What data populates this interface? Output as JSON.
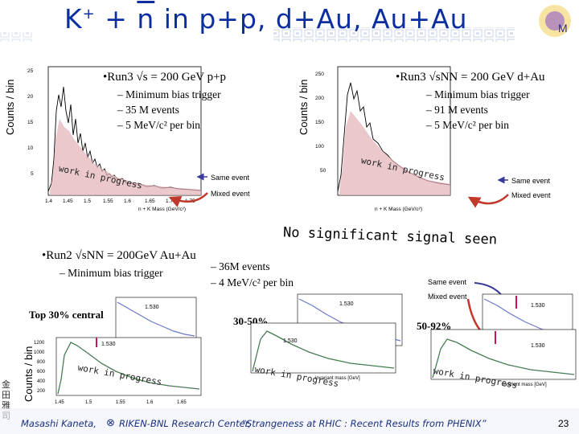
{
  "slide": {
    "title_main": "K",
    "title_sup": "+",
    "title_plus": " + ",
    "title_nbar": "n",
    "title_rest": "  in p+p, d+Au, Au+Au",
    "y_axis_label": "Counts / bin",
    "pp_run": "•Run3 √s  = 200 GeV p+p",
    "pp_bullets": [
      "– Minimum bias trigger",
      "– 35 M events",
      "– 5 MeV/c² per bin"
    ],
    "dau_run": "•Run3 √sNN = 200 GeV d+Au",
    "dau_bullets": [
      "– Minimum bias trigger",
      "– 91 M events",
      "– 5 MeV/c² per bin"
    ],
    "auau_run": "•Run2 √sNN = 200GeV Au+Au",
    "auau_bullet": "– Minimum bias trigger",
    "auau_events": "– 36M events",
    "auau_bin": "– 4 MeV/c² per bin",
    "work_in_progress": "work in progress",
    "same_event": "Same event",
    "mixed_event": "Mixed event",
    "no_signal": "No significant signal seen",
    "centralities": [
      "Top 30% central",
      "30-50%",
      "50-92%"
    ],
    "x_axis_label": "n + K Mass (GeV/c²)",
    "invariant_mass": "invariant mass [GeV]",
    "marker_1530": "1.530",
    "footer_author": "Masashi Kaneta,",
    "footer_affil": "RIKEN-BNL Research Center,",
    "footer_talk": "“Strangeness at RHIC : Recent Results from PHENIX”",
    "page_number": "23",
    "side_logo_text": "金田雅司",
    "pp_x_ticks": [
      "1.4",
      "1.45",
      "1.5",
      "1.55",
      "1.6",
      "1.65",
      "1.7",
      "1.75"
    ],
    "pp_y_ticks": [
      "25",
      "20",
      "15",
      "10",
      "5"
    ],
    "dau_y_ticks": [
      "250",
      "200",
      "150",
      "100",
      "50"
    ],
    "auau_y_ticks": [
      "1200",
      "1000",
      "800",
      "600",
      "400",
      "200"
    ],
    "auau_x_ticks": [
      "1.45",
      "1.5",
      "1.55",
      "1.6",
      "1.65"
    ]
  },
  "colors": {
    "title": "#0c2f9f",
    "accent_arrow": "#c0392b",
    "same_arrow": "#3a3a9a",
    "footer": "#1a2f80"
  }
}
